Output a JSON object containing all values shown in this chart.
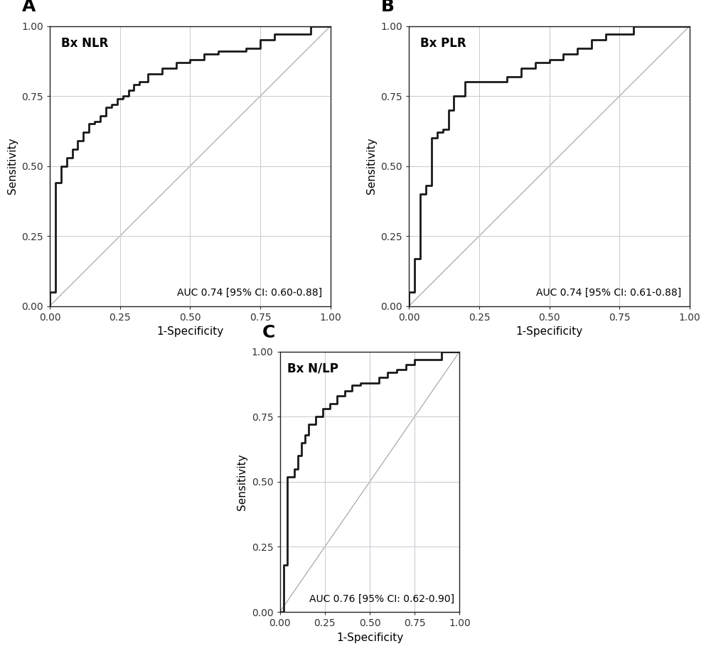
{
  "panels": [
    {
      "label": "A",
      "title": "Bx NLR",
      "auc_text": "AUC 0.74 [95% CI: 0.60-0.88]",
      "roc_x": [
        0.0,
        0.0,
        0.02,
        0.02,
        0.04,
        0.04,
        0.06,
        0.06,
        0.08,
        0.08,
        0.1,
        0.1,
        0.12,
        0.12,
        0.14,
        0.14,
        0.16,
        0.16,
        0.18,
        0.18,
        0.2,
        0.2,
        0.22,
        0.22,
        0.24,
        0.24,
        0.26,
        0.26,
        0.28,
        0.28,
        0.3,
        0.3,
        0.32,
        0.32,
        0.35,
        0.35,
        0.4,
        0.4,
        0.45,
        0.45,
        0.5,
        0.5,
        0.55,
        0.55,
        0.6,
        0.6,
        0.65,
        0.65,
        0.7,
        0.7,
        0.75,
        0.75,
        0.8,
        0.8,
        0.85,
        0.85,
        0.9,
        0.9,
        0.93,
        0.93,
        0.96,
        0.96,
        1.0
      ],
      "roc_y": [
        0.0,
        0.05,
        0.05,
        0.44,
        0.44,
        0.5,
        0.5,
        0.53,
        0.53,
        0.56,
        0.56,
        0.59,
        0.59,
        0.62,
        0.62,
        0.65,
        0.65,
        0.66,
        0.66,
        0.68,
        0.68,
        0.71,
        0.71,
        0.72,
        0.72,
        0.74,
        0.74,
        0.75,
        0.75,
        0.77,
        0.77,
        0.79,
        0.79,
        0.8,
        0.8,
        0.83,
        0.83,
        0.85,
        0.85,
        0.87,
        0.87,
        0.88,
        0.88,
        0.9,
        0.9,
        0.91,
        0.91,
        0.91,
        0.91,
        0.92,
        0.92,
        0.95,
        0.95,
        0.97,
        0.97,
        0.97,
        0.97,
        0.97,
        0.97,
        1.0,
        1.0,
        1.0,
        1.0
      ]
    },
    {
      "label": "B",
      "title": "Bx PLR",
      "auc_text": "AUC 0.74 [95% CI: 0.61-0.88]",
      "roc_x": [
        0.0,
        0.0,
        0.02,
        0.02,
        0.04,
        0.04,
        0.06,
        0.06,
        0.08,
        0.08,
        0.1,
        0.1,
        0.12,
        0.12,
        0.14,
        0.14,
        0.16,
        0.16,
        0.18,
        0.18,
        0.2,
        0.2,
        0.25,
        0.25,
        0.3,
        0.3,
        0.35,
        0.35,
        0.4,
        0.4,
        0.45,
        0.45,
        0.5,
        0.5,
        0.55,
        0.55,
        0.6,
        0.6,
        0.65,
        0.65,
        0.7,
        0.7,
        0.75,
        0.75,
        0.8,
        0.8,
        0.85,
        0.85,
        0.9,
        0.9,
        0.95,
        0.95,
        1.0
      ],
      "roc_y": [
        0.0,
        0.05,
        0.05,
        0.17,
        0.17,
        0.4,
        0.4,
        0.43,
        0.43,
        0.6,
        0.6,
        0.62,
        0.62,
        0.63,
        0.63,
        0.7,
        0.7,
        0.75,
        0.75,
        0.75,
        0.75,
        0.8,
        0.8,
        0.8,
        0.8,
        0.8,
        0.8,
        0.82,
        0.82,
        0.85,
        0.85,
        0.87,
        0.87,
        0.88,
        0.88,
        0.9,
        0.9,
        0.92,
        0.92,
        0.95,
        0.95,
        0.97,
        0.97,
        0.97,
        0.97,
        1.0,
        1.0,
        1.0,
        1.0,
        1.0,
        1.0,
        1.0,
        1.0
      ]
    },
    {
      "label": "C",
      "title": "Bx N/LP",
      "auc_text": "AUC 0.76 [95% CI: 0.62-0.90]",
      "roc_x": [
        0.0,
        0.0,
        0.02,
        0.02,
        0.04,
        0.04,
        0.06,
        0.06,
        0.08,
        0.08,
        0.1,
        0.1,
        0.12,
        0.12,
        0.14,
        0.14,
        0.16,
        0.16,
        0.2,
        0.2,
        0.24,
        0.24,
        0.28,
        0.28,
        0.32,
        0.32,
        0.36,
        0.36,
        0.4,
        0.4,
        0.45,
        0.45,
        0.5,
        0.5,
        0.55,
        0.55,
        0.6,
        0.6,
        0.65,
        0.65,
        0.7,
        0.7,
        0.75,
        0.75,
        0.8,
        0.8,
        0.85,
        0.85,
        0.9,
        0.9,
        0.95,
        0.95,
        1.0
      ],
      "roc_y": [
        0.0,
        0.0,
        0.0,
        0.18,
        0.18,
        0.52,
        0.52,
        0.52,
        0.52,
        0.55,
        0.55,
        0.6,
        0.6,
        0.65,
        0.65,
        0.68,
        0.68,
        0.72,
        0.72,
        0.75,
        0.75,
        0.78,
        0.78,
        0.8,
        0.8,
        0.83,
        0.83,
        0.85,
        0.85,
        0.87,
        0.87,
        0.88,
        0.88,
        0.88,
        0.88,
        0.9,
        0.9,
        0.92,
        0.92,
        0.93,
        0.93,
        0.95,
        0.95,
        0.97,
        0.97,
        0.97,
        0.97,
        0.97,
        0.97,
        1.0,
        1.0,
        1.0,
        1.0
      ]
    }
  ],
  "xlim": [
    0.0,
    1.0
  ],
  "ylim": [
    0.0,
    1.0
  ],
  "xticks": [
    0.0,
    0.25,
    0.5,
    0.75,
    1.0
  ],
  "yticks": [
    0.0,
    0.25,
    0.5,
    0.75,
    1.0
  ],
  "xticklabels": [
    "0.00",
    "0.25",
    "0.50",
    "0.75",
    "1.00"
  ],
  "yticklabels": [
    "0.00",
    "0.25",
    "0.50",
    "0.75",
    "1.00"
  ],
  "xlabel": "1-Specificity",
  "ylabel": "Sensitivity",
  "roc_color": "#1a1a1a",
  "diag_color": "#aaaaaa",
  "grid_color": "#c8c8d0",
  "bg_color": "#ffffff",
  "panel_bg": "#ffffff",
  "label_fontsize": 18,
  "title_fontsize": 12,
  "tick_fontsize": 10,
  "auc_fontsize": 10,
  "axis_label_fontsize": 11,
  "roc_linewidth": 2.0,
  "diag_linewidth": 0.9
}
